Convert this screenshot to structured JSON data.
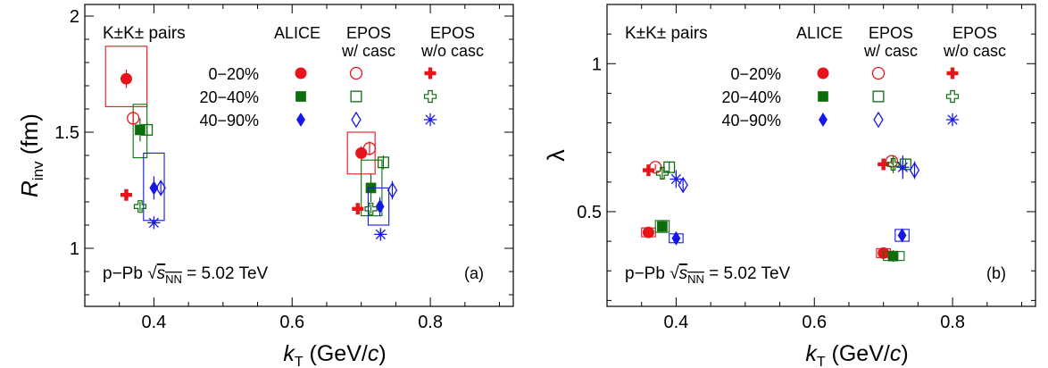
{
  "chart_data": [
    {
      "type": "scatter",
      "panel": "(a)",
      "xlabel": "k_T (GeV/c)",
      "xlabel_parts": {
        "symbol": "k",
        "sub": "T",
        "unit_prefix": " (GeV/",
        "unit_var": "c",
        "unit_suffix": ")"
      },
      "ylabel": "R_inv (fm)",
      "ylabel_parts": {
        "symbol": "R",
        "sub": "inv",
        "unit": " (fm)"
      },
      "xlim": [
        0.3,
        0.92
      ],
      "ylim": [
        0.75,
        2.05
      ],
      "xticks": [
        0.4,
        0.6,
        0.8
      ],
      "xtick_labels": [
        "0.4",
        "0.6",
        "0.8"
      ],
      "yticks": [
        1.0,
        1.5,
        2.0
      ],
      "ytick_labels": [
        "1",
        "1.5",
        "2"
      ],
      "annotation_pair": "K±K± pairs",
      "annotation_system": "p−Pb",
      "annotation_energy": "√s_NN = 5.02 TeV",
      "annotation_energy_parts": {
        "sqrt": "√",
        "s": "s",
        "sub": "NN",
        "rest": " = 5.02 TeV"
      },
      "series": [
        {
          "name": "ALICE 0−20%",
          "marker": "circle",
          "color": "#e8141c",
          "filled": true,
          "points": [
            {
              "x": 0.36,
              "y": 1.73,
              "err": 0.04,
              "sys": [
                0.33,
                0.39,
                1.61,
                1.87
              ]
            },
            {
              "x": 0.7,
              "y": 1.41,
              "err": 0.03,
              "sys": [
                0.68,
                0.72,
                1.32,
                1.5
              ]
            }
          ]
        },
        {
          "name": "ALICE 20−40%",
          "marker": "square",
          "color": "#0b6e0b",
          "filled": true,
          "points": [
            {
              "x": 0.38,
              "y": 1.51,
              "err": 0.05,
              "sys": [
                0.37,
                0.39,
                1.39,
                1.62
              ]
            },
            {
              "x": 0.714,
              "y": 1.26,
              "err": 0.06,
              "sys": [
                0.7,
                0.73,
                1.14,
                1.38
              ]
            }
          ]
        },
        {
          "name": "ALICE 40−90%",
          "marker": "diamond",
          "color": "#1616e8",
          "filled": true,
          "points": [
            {
              "x": 0.4,
              "y": 1.26,
              "err": 0.05,
              "sys": [
                0.385,
                0.415,
                1.12,
                1.41
              ]
            },
            {
              "x": 0.727,
              "y": 1.18,
              "err": 0.04,
              "sys": [
                0.71,
                0.74,
                1.1,
                1.26
              ]
            }
          ]
        },
        {
          "name": "EPOS w/ casc 0−20%",
          "marker": "circle",
          "color": "#e8141c",
          "filled": false,
          "points": [
            {
              "x": 0.37,
              "y": 1.56,
              "err": 0.03
            },
            {
              "x": 0.712,
              "y": 1.43,
              "err": 0.03
            }
          ]
        },
        {
          "name": "EPOS w/ casc 20−40%",
          "marker": "square",
          "color": "#0b6e0b",
          "filled": false,
          "points": [
            {
              "x": 0.39,
              "y": 1.51,
              "err": 0.03
            },
            {
              "x": 0.732,
              "y": 1.37,
              "err": 0.03
            }
          ]
        },
        {
          "name": "EPOS w/ casc 40−90%",
          "marker": "diamond",
          "color": "#1616e8",
          "filled": false,
          "points": [
            {
              "x": 0.41,
              "y": 1.26,
              "err": 0.03
            },
            {
              "x": 0.745,
              "y": 1.25,
              "err": 0.04
            }
          ]
        },
        {
          "name": "EPOS w/o casc 0−20%",
          "marker": "cross",
          "color": "#e8141c",
          "filled": true,
          "points": [
            {
              "x": 0.36,
              "y": 1.23,
              "err": 0.01
            },
            {
              "x": 0.695,
              "y": 1.17,
              "err": 0.01
            }
          ]
        },
        {
          "name": "EPOS w/o casc 20−40%",
          "marker": "cross",
          "color": "#0b6e0b",
          "filled": false,
          "points": [
            {
              "x": 0.38,
              "y": 1.18,
              "err": 0.02
            },
            {
              "x": 0.714,
              "y": 1.17,
              "err": 0.02
            }
          ]
        },
        {
          "name": "EPOS w/o casc 40−90%",
          "marker": "star",
          "color": "#1616e8",
          "filled": false,
          "points": [
            {
              "x": 0.4,
              "y": 1.11,
              "err": 0.01
            },
            {
              "x": 0.728,
              "y": 1.06,
              "err": 0.02
            }
          ]
        }
      ]
    },
    {
      "type": "scatter",
      "panel": "(b)",
      "xlabel": "k_T (GeV/c)",
      "xlabel_parts": {
        "symbol": "k",
        "sub": "T",
        "unit_prefix": " (GeV/",
        "unit_var": "c",
        "unit_suffix": ")"
      },
      "ylabel": "λ",
      "ylabel_parts": {
        "symbol": "λ",
        "sub": "",
        "unit": ""
      },
      "xlim": [
        0.3,
        0.92
      ],
      "ylim": [
        0.18,
        1.2
      ],
      "xticks": [
        0.4,
        0.6,
        0.8
      ],
      "xtick_labels": [
        "0.4",
        "0.6",
        "0.8"
      ],
      "yticks": [
        0.5,
        1.0
      ],
      "ytick_labels": [
        "0.5",
        "1"
      ],
      "annotation_pair": "K±K± pairs",
      "annotation_system": "p−Pb",
      "annotation_energy": "√s_NN = 5.02 TeV",
      "annotation_energy_parts": {
        "sqrt": "√",
        "s": "s",
        "sub": "NN",
        "rest": " = 5.02 TeV"
      },
      "series": [
        {
          "name": "ALICE 0−20%",
          "marker": "circle",
          "color": "#e8141c",
          "filled": true,
          "points": [
            {
              "x": 0.36,
              "y": 0.43,
              "err": 0.01,
              "sys": [
                0.35,
                0.37,
                0.415,
                0.445
              ]
            },
            {
              "x": 0.7,
              "y": 0.36,
              "err": 0.01,
              "sys": [
                0.69,
                0.71,
                0.345,
                0.375
              ]
            }
          ]
        },
        {
          "name": "ALICE 20−40%",
          "marker": "square",
          "color": "#0b6e0b",
          "filled": true,
          "points": [
            {
              "x": 0.38,
              "y": 0.45,
              "err": 0.02,
              "sys": [
                0.37,
                0.39,
                0.43,
                0.47
              ]
            },
            {
              "x": 0.714,
              "y": 0.35,
              "err": 0.02,
              "sys": [
                0.7,
                0.73,
                0.335,
                0.365
              ]
            }
          ]
        },
        {
          "name": "ALICE 40−90%",
          "marker": "diamond",
          "color": "#1616e8",
          "filled": true,
          "points": [
            {
              "x": 0.4,
              "y": 0.41,
              "err": 0.01,
              "sys": [
                0.39,
                0.41,
                0.395,
                0.425
              ]
            },
            {
              "x": 0.727,
              "y": 0.42,
              "err": 0.02,
              "sys": [
                0.717,
                0.737,
                0.4,
                0.44
              ]
            }
          ]
        },
        {
          "name": "EPOS w/ casc 0−20%",
          "marker": "circle",
          "color": "#e8141c",
          "filled": false,
          "points": [
            {
              "x": 0.37,
              "y": 0.65,
              "err": 0.01
            },
            {
              "x": 0.712,
              "y": 0.67,
              "err": 0.01
            }
          ]
        },
        {
          "name": "EPOS w/ casc 20−40%",
          "marker": "square",
          "color": "#0b6e0b",
          "filled": false,
          "points": [
            {
              "x": 0.39,
              "y": 0.65,
              "err": 0.02
            },
            {
              "x": 0.732,
              "y": 0.66,
              "err": 0.02
            }
          ]
        },
        {
          "name": "EPOS w/ casc 40−90%",
          "marker": "diamond",
          "color": "#1616e8",
          "filled": false,
          "points": [
            {
              "x": 0.41,
              "y": 0.59,
              "err": 0.02
            },
            {
              "x": 0.745,
              "y": 0.64,
              "err": 0.03
            }
          ]
        },
        {
          "name": "EPOS w/o casc 0−20%",
          "marker": "cross",
          "color": "#e8141c",
          "filled": true,
          "points": [
            {
              "x": 0.36,
              "y": 0.64,
              "err": 0.01
            },
            {
              "x": 0.7,
              "y": 0.66,
              "err": 0.01
            }
          ]
        },
        {
          "name": "EPOS w/o casc 20−40%",
          "marker": "cross",
          "color": "#0b6e0b",
          "filled": false,
          "points": [
            {
              "x": 0.38,
              "y": 0.63,
              "err": 0.02
            },
            {
              "x": 0.714,
              "y": 0.66,
              "err": 0.03
            }
          ]
        },
        {
          "name": "EPOS w/o casc 40−90%",
          "marker": "star",
          "color": "#1616e8",
          "filled": false,
          "points": [
            {
              "x": 0.4,
              "y": 0.61,
              "err": 0.03
            },
            {
              "x": 0.728,
              "y": 0.65,
              "err": 0.04
            }
          ]
        }
      ]
    }
  ],
  "legend": {
    "columns": [
      {
        "line1": "ALICE",
        "line2": ""
      },
      {
        "line1": "EPOS",
        "line2": "w/ casc"
      },
      {
        "line1": "EPOS",
        "line2": "w/o casc"
      }
    ],
    "rows": [
      {
        "label": "0−20%",
        "color": "#e8141c",
        "markers": [
          "circle",
          "circle",
          "cross"
        ],
        "filled": [
          true,
          false,
          true
        ]
      },
      {
        "label": "20−40%",
        "color": "#0b6e0b",
        "markers": [
          "square",
          "square",
          "cross"
        ],
        "filled": [
          true,
          false,
          false
        ]
      },
      {
        "label": "40−90%",
        "color": "#1616e8",
        "markers": [
          "diamond",
          "diamond",
          "star"
        ],
        "filled": [
          true,
          false,
          false
        ]
      }
    ]
  }
}
